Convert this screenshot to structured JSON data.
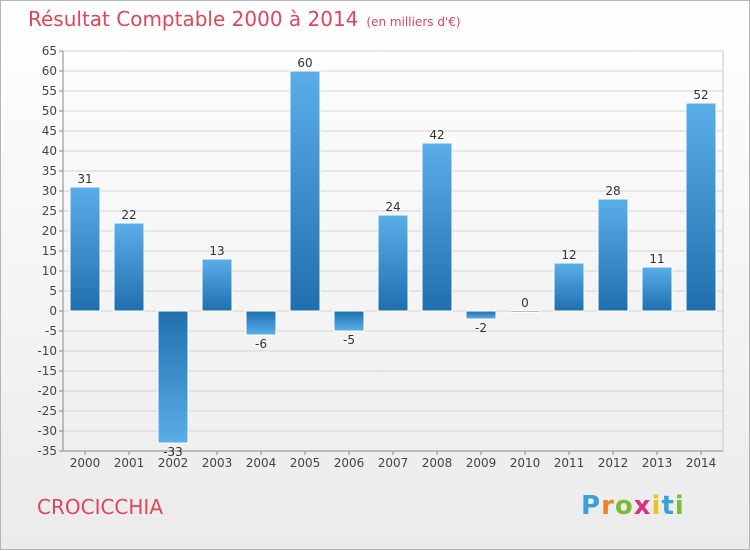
{
  "header": {
    "title": "Résultat Comptable 2000 à 2014",
    "unit": "(en milliers d'€)"
  },
  "footer": {
    "commune": "CROCICCHIA",
    "logo_letters": [
      "P",
      "r",
      "o",
      "x",
      "i",
      "t",
      "i"
    ],
    "logo_colors": [
      "#3aa0d8",
      "#e8842a",
      "#7cba3a",
      "#d8338a",
      "#f0c020",
      "#3aa0d8",
      "#7cba3a"
    ]
  },
  "colors": {
    "bar_top": "#5aaee8",
    "bar_bottom": "#1f6faf",
    "title": "#e0455a"
  },
  "chart_data": {
    "type": "bar",
    "categories": [
      "2000",
      "2001",
      "2002",
      "2003",
      "2004",
      "2005",
      "2006",
      "2007",
      "2008",
      "2009",
      "2010",
      "2011",
      "2012",
      "2013",
      "2014"
    ],
    "values": [
      31,
      22,
      -33,
      13,
      -6,
      60,
      -5,
      24,
      42,
      -2,
      0,
      12,
      28,
      11,
      52
    ],
    "title": "Résultat Comptable 2000 à 2014",
    "ylim": [
      -35,
      65
    ],
    "yticks": [
      65,
      60,
      55,
      50,
      45,
      40,
      35,
      30,
      25,
      20,
      15,
      10,
      5,
      0,
      -5,
      -10,
      -15,
      -20,
      -25,
      -30,
      -35
    ],
    "grid": true
  }
}
